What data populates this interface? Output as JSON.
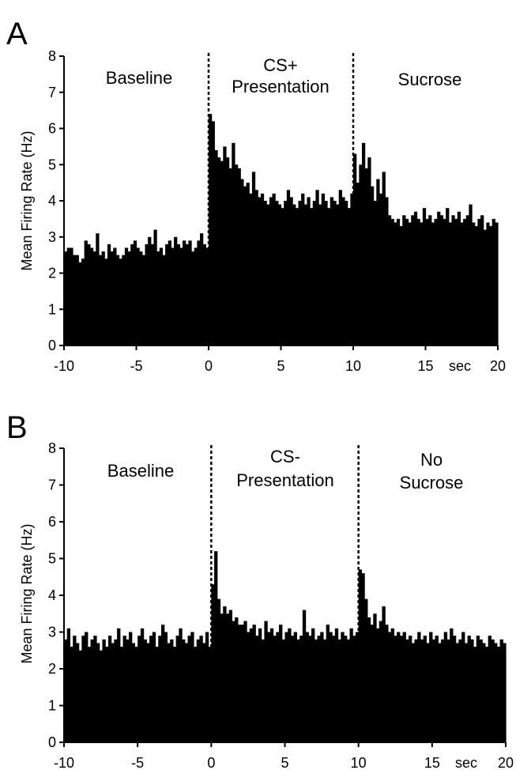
{
  "figure": {
    "panels": [
      {
        "letter": "A",
        "ylabel": "Mean Firing Rate (Hz)",
        "x_unit": "sec",
        "phases": [
          {
            "lines": [
              "Baseline"
            ]
          },
          {
            "lines": [
              "CS+",
              "Presentation"
            ]
          },
          {
            "lines": [
              "Sucrose"
            ]
          }
        ]
      },
      {
        "letter": "B",
        "ylabel": "Mean Firing Rate (Hz)",
        "x_unit": "sec",
        "phases": [
          {
            "lines": [
              "Baseline"
            ]
          },
          {
            "lines": [
              "CS-",
              "Presentation"
            ]
          },
          {
            "lines": [
              "No",
              "Sucrose"
            ]
          }
        ]
      }
    ]
  },
  "chart_data": [
    {
      "type": "bar",
      "panel": "A",
      "ylabel": "Mean Firing Rate (Hz)",
      "xlabel": "sec",
      "xlim": [
        -10,
        20
      ],
      "ylim": [
        0,
        8
      ],
      "xticks": [
        -10,
        -5,
        0,
        5,
        10,
        15,
        20
      ],
      "xtick_labels": [
        "-10",
        "-5",
        "0",
        "5",
        "10",
        "15",
        "20"
      ],
      "yticks": [
        0,
        1,
        2,
        3,
        4,
        5,
        6,
        7,
        8
      ],
      "bin_width": 0.2,
      "event_lines_x": [
        0,
        10
      ],
      "bins": [
        {
          "x_start": -10,
          "x_end": 0,
          "values": [
            2.6,
            2.7,
            2.7,
            2.5,
            2.5,
            2.3,
            2.4,
            2.9,
            2.8,
            2.7,
            2.6,
            3.1,
            2.5,
            2.6,
            2.4,
            2.8,
            2.6,
            2.7,
            2.5,
            2.4,
            2.5,
            2.7,
            2.6,
            2.8,
            2.9,
            2.7,
            2.6,
            2.5,
            2.8,
            3.0,
            2.8,
            3.2,
            2.6,
            2.7,
            2.5,
            2.8,
            2.9,
            2.7,
            3.0,
            2.8,
            2.7,
            2.9,
            2.8,
            2.9,
            2.6,
            2.7,
            2.9,
            3.1,
            2.8,
            2.7
          ]
        },
        {
          "x_start": 0,
          "x_end": 10,
          "values": [
            6.4,
            6.2,
            5.4,
            5.2,
            5.1,
            5.5,
            5.2,
            4.9,
            5.6,
            5.0,
            4.9,
            4.6,
            4.4,
            4.5,
            4.2,
            4.8,
            4.3,
            4.1,
            4.2,
            4.0,
            3.9,
            4.1,
            4.2,
            4.0,
            3.9,
            3.8,
            4.0,
            4.3,
            4.1,
            3.9,
            3.8,
            4.0,
            4.2,
            3.9,
            4.1,
            3.8,
            4.0,
            4.3,
            3.9,
            4.2,
            4.0,
            3.8,
            4.1,
            4.0,
            3.9,
            4.3,
            4.1,
            4.0,
            3.8,
            4.2
          ]
        },
        {
          "x_start": 10,
          "x_end": 20,
          "values": [
            5.3,
            4.5,
            5.0,
            5.6,
            4.9,
            5.2,
            4.4,
            4.0,
            4.6,
            4.2,
            4.8,
            4.1,
            3.6,
            3.5,
            3.4,
            3.5,
            3.3,
            3.6,
            3.5,
            3.4,
            3.6,
            3.7,
            3.5,
            3.4,
            3.8,
            3.5,
            3.6,
            3.4,
            3.5,
            3.7,
            3.6,
            3.5,
            3.8,
            3.4,
            3.6,
            3.5,
            3.7,
            3.4,
            3.5,
            3.6,
            3.9,
            3.4,
            3.3,
            3.5,
            3.6,
            3.2,
            3.4,
            3.3,
            3.5,
            3.4
          ]
        }
      ]
    },
    {
      "type": "bar",
      "panel": "B",
      "ylabel": "Mean Firing Rate (Hz)",
      "xlabel": "sec",
      "xlim": [
        -10,
        20
      ],
      "ylim": [
        0,
        8
      ],
      "xticks": [
        -10,
        -5,
        0,
        5,
        10,
        15,
        20
      ],
      "xtick_labels": [
        "-10",
        "-5",
        "0",
        "5",
        "10",
        "15",
        "20"
      ],
      "yticks": [
        0,
        1,
        2,
        3,
        4,
        5,
        6,
        7,
        8
      ],
      "bin_width": 0.2,
      "event_lines_x": [
        0,
        10
      ],
      "bins": [
        {
          "x_start": -10,
          "x_end": 0,
          "values": [
            2.8,
            3.1,
            2.6,
            2.9,
            2.7,
            2.5,
            2.9,
            3.0,
            2.6,
            2.8,
            2.9,
            2.7,
            2.5,
            2.8,
            2.6,
            2.9,
            2.7,
            2.8,
            3.1,
            2.6,
            2.9,
            2.8,
            3.0,
            2.7,
            2.6,
            2.9,
            3.1,
            2.8,
            2.7,
            2.9,
            3.0,
            2.6,
            2.9,
            3.2,
            3.0,
            2.7,
            2.8,
            2.6,
            2.9,
            3.1,
            2.8,
            2.7,
            2.9,
            3.0,
            2.6,
            2.8,
            2.9,
            2.7,
            3.0,
            2.6
          ]
        },
        {
          "x_start": 0,
          "x_end": 10,
          "values": [
            4.3,
            5.2,
            3.9,
            3.5,
            3.7,
            3.5,
            3.6,
            3.3,
            3.4,
            3.2,
            3.2,
            3.3,
            3.0,
            3.1,
            3.2,
            2.9,
            3.1,
            2.8,
            3.3,
            3.0,
            3.1,
            2.9,
            3.0,
            3.2,
            2.8,
            3.0,
            3.1,
            2.9,
            3.0,
            2.8,
            2.9,
            3.6,
            3.0,
            2.9,
            3.1,
            2.8,
            2.9,
            3.0,
            2.8,
            3.2,
            3.0,
            2.9,
            3.1,
            2.8,
            3.0,
            2.9,
            2.8,
            3.1,
            2.9,
            3.0
          ]
        },
        {
          "x_start": 10,
          "x_end": 20,
          "values": [
            4.7,
            4.6,
            3.9,
            3.4,
            3.2,
            3.5,
            3.1,
            3.3,
            3.7,
            3.2,
            3.0,
            3.1,
            2.9,
            3.0,
            2.9,
            3.0,
            2.8,
            2.9,
            2.7,
            2.8,
            3.0,
            2.8,
            2.9,
            2.7,
            3.0,
            2.8,
            2.9,
            2.7,
            2.8,
            3.0,
            2.8,
            3.1,
            2.9,
            2.7,
            2.8,
            3.0,
            2.7,
            2.9,
            2.8,
            2.6,
            2.9,
            2.8,
            2.7,
            2.6,
            2.9,
            2.8,
            2.7,
            2.6,
            2.8,
            2.7
          ]
        }
      ]
    }
  ]
}
